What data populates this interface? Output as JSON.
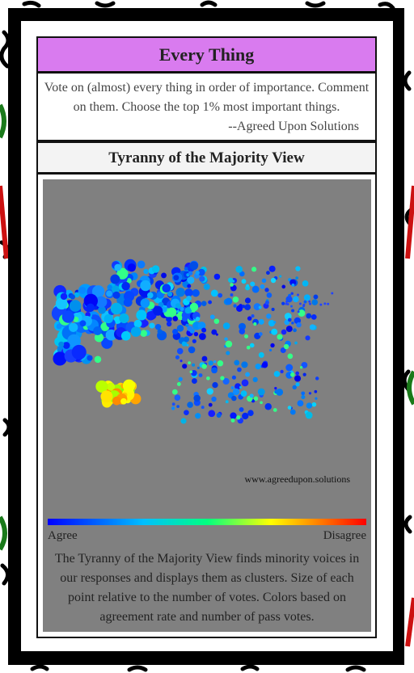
{
  "header": {
    "title": "Every Thing",
    "description": "Vote on (almost) every thing in order of importance. Comment on them. Choose the top 1% most important things.",
    "attribution": "--Agreed Upon Solutions"
  },
  "view": {
    "title": "Tyranny of the Majority View",
    "watermark": "www.agreedupon.solutions",
    "legend_low": "Agree",
    "legend_high": "Disagree",
    "caption": "The Tyranny of the Majority View finds minority voices in our responses and displays them as clusters. Size of each point relative to the number of votes. Colors based on agreement rate and number of pass votes."
  }
}
